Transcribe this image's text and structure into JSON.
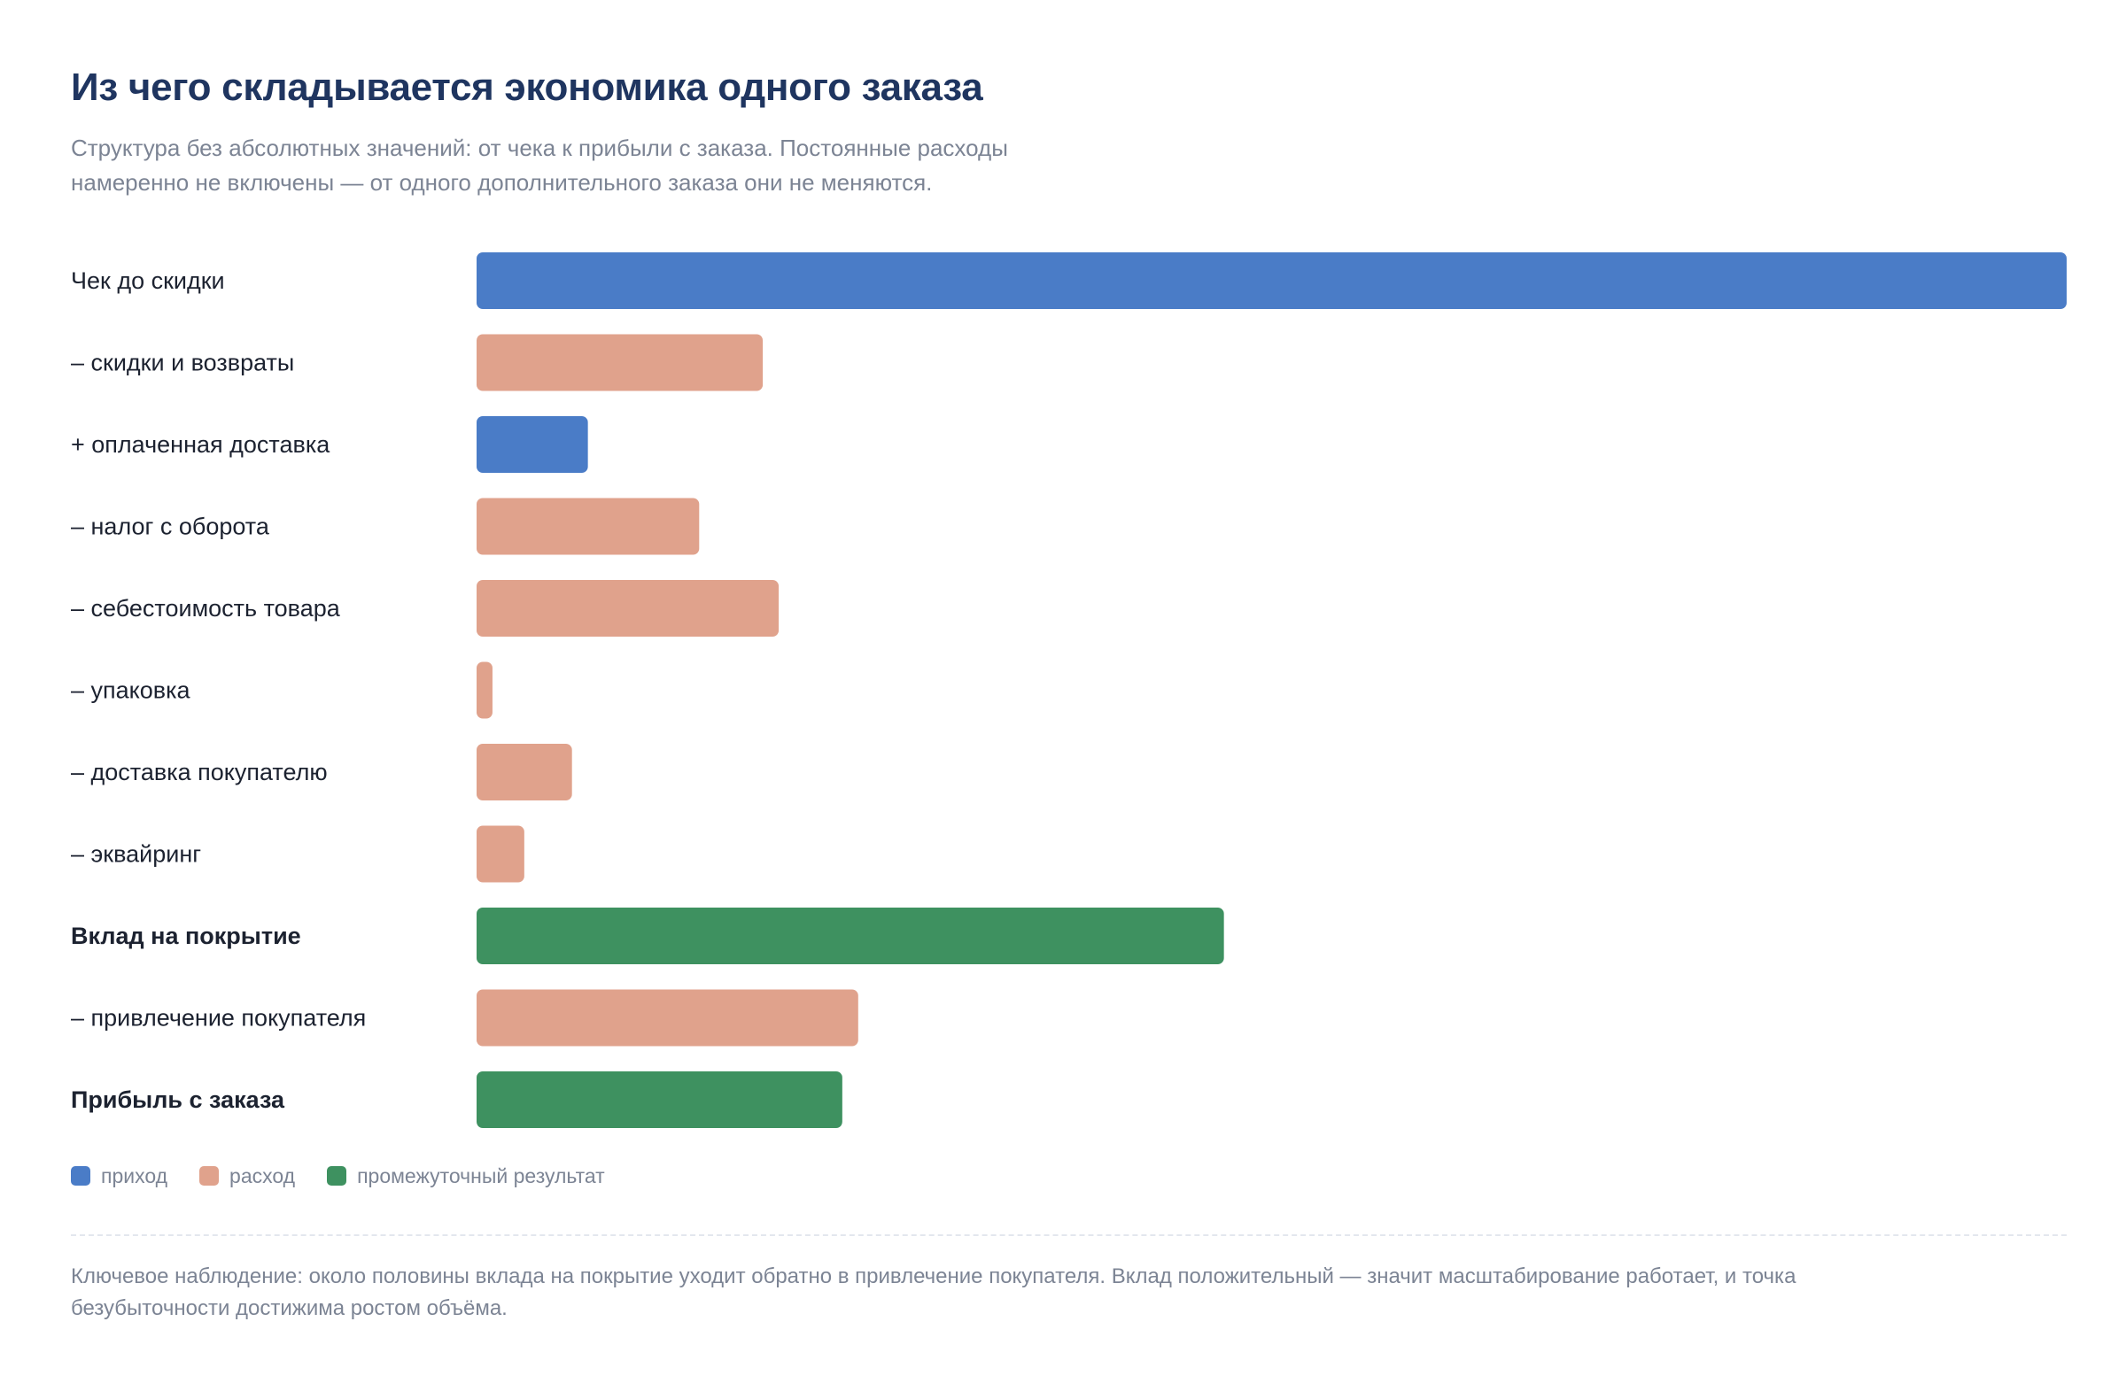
{
  "header": {
    "title": "Из чего складывается экономика одного заказа",
    "subtitle_line1": "Структура без абсолютных значений: от чека к прибыли с заказа. Постоянные расходы",
    "subtitle_line2": "намеренно не включены — от одного дополнительного заказа они не меняются."
  },
  "chart_data": {
    "type": "bar",
    "orientation": "horizontal",
    "categories": [
      "Чек до скидки",
      "– скидки и возвраты",
      "+ оплаченная доставка",
      "– налог с оборота",
      "– себестоимость товара",
      "– упаковка",
      "– доставка покупателю",
      "– эквайринг",
      "Вклад на покрытие",
      "– привлечение покупателя",
      "Прибыль с заказа"
    ],
    "values": [
      100,
      18,
      7,
      14,
      19,
      1,
      6,
      3,
      47,
      24,
      23
    ],
    "kinds": [
      "income",
      "expense",
      "income",
      "expense",
      "expense",
      "expense",
      "expense",
      "expense",
      "result",
      "expense",
      "result"
    ],
    "emphasis": [
      false,
      false,
      false,
      false,
      false,
      false,
      false,
      false,
      true,
      false,
      true
    ],
    "scale_note": "relative share of the receipt before discount, values not printed",
    "xlim": [
      0,
      100
    ],
    "grid": false,
    "legend_position": "bottom-left"
  },
  "legend": {
    "items": [
      {
        "key": "income",
        "label": "приход",
        "color": "#4a7cc7"
      },
      {
        "key": "expense",
        "label": "расход",
        "color": "#e0a28c"
      },
      {
        "key": "result",
        "label": "промежуточный результат",
        "color": "#3e9160"
      }
    ]
  },
  "footnote": {
    "line1": "Ключевое наблюдение: около половины вклада на покрытие уходит обратно в привлечение покупателя. Вклад положительный — значит масштабирование работает, и точка",
    "line2": "безубыточности достижима ростом объёма."
  }
}
